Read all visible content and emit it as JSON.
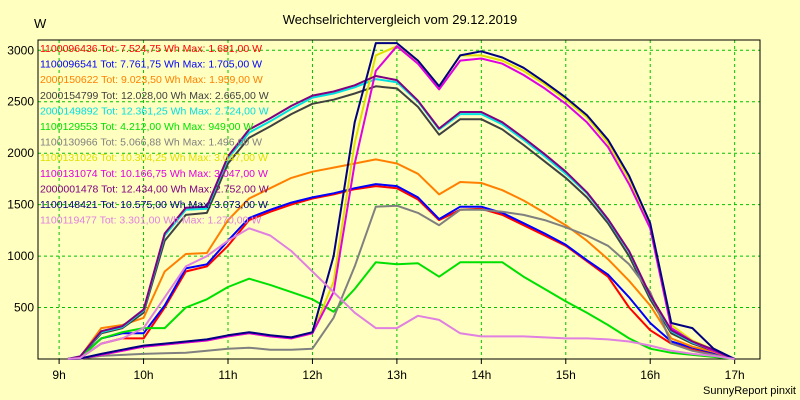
{
  "chart_data": {
    "type": "line",
    "title": "Wechselrichtervergleich vom 29.12.2019",
    "ylabel": "W",
    "xlabel": "",
    "footer": "SunnyReport pinxit",
    "xlim": [
      8.75,
      17.3
    ],
    "ylim": [
      0,
      3100
    ],
    "x_ticks": [
      9,
      10,
      11,
      12,
      13,
      14,
      15,
      16,
      17
    ],
    "x_tick_labels": [
      "9h",
      "10h",
      "11h",
      "12h",
      "13h",
      "14h",
      "15h",
      "16h",
      "17h"
    ],
    "y_ticks": [
      500,
      1000,
      1500,
      2000,
      2500,
      3000
    ],
    "y_tick_labels": [
      "500",
      "1000",
      "1500",
      "2000",
      "2500",
      "3000"
    ],
    "grid": true,
    "legend_position": "top-left",
    "x": [
      9.1,
      9.25,
      9.5,
      9.75,
      10.0,
      10.25,
      10.5,
      10.75,
      11.0,
      11.25,
      11.5,
      11.75,
      12.0,
      12.25,
      12.5,
      12.75,
      13.0,
      13.25,
      13.5,
      13.75,
      14.0,
      14.25,
      14.5,
      14.75,
      15.0,
      15.25,
      15.5,
      15.75,
      16.0,
      16.25,
      16.5,
      16.75,
      17.0
    ],
    "series": [
      {
        "name": "1100096436 Tot: 7.524,75 Wh Max: 1.681,00 W",
        "color": "#ff0000",
        "values": [
          0,
          10,
          150,
          200,
          200,
          500,
          850,
          900,
          1100,
          1350,
          1430,
          1500,
          1560,
          1600,
          1650,
          1680,
          1660,
          1550,
          1350,
          1450,
          1460,
          1400,
          1300,
          1200,
          1100,
          950,
          800,
          500,
          280,
          150,
          90,
          50,
          0
        ]
      },
      {
        "name": "1100096541 Tot: 7.761,75 Wh Max: 1.705,00 W",
        "color": "#0000ff",
        "values": [
          0,
          15,
          200,
          250,
          250,
          520,
          880,
          920,
          1150,
          1370,
          1450,
          1520,
          1570,
          1610,
          1660,
          1700,
          1680,
          1570,
          1360,
          1480,
          1480,
          1420,
          1320,
          1220,
          1110,
          960,
          820,
          600,
          350,
          170,
          110,
          60,
          0
        ]
      },
      {
        "name": "2000150622 Tot: 9.023,50 Wh Max: 1.959,00 W",
        "color": "#ff8000",
        "values": [
          0,
          20,
          300,
          330,
          400,
          850,
          1020,
          1030,
          1350,
          1560,
          1660,
          1760,
          1820,
          1860,
          1900,
          1940,
          1900,
          1800,
          1600,
          1720,
          1710,
          1640,
          1540,
          1420,
          1300,
          1150,
          970,
          760,
          520,
          200,
          120,
          70,
          0
        ]
      },
      {
        "name": "2000154799 Tot: 12.028,00 Wh Max: 2.665,00 W",
        "color": "#404040",
        "values": [
          0,
          20,
          250,
          300,
          450,
          1150,
          1400,
          1420,
          1900,
          2150,
          2260,
          2380,
          2480,
          2520,
          2580,
          2650,
          2630,
          2450,
          2180,
          2330,
          2330,
          2230,
          2080,
          1920,
          1760,
          1570,
          1320,
          1000,
          580,
          250,
          150,
          80,
          0
        ]
      },
      {
        "name": "2000149892 Tot: 12.361,25 Wh Max: 2.724,00 W",
        "color": "#00e0e0",
        "values": [
          0,
          25,
          260,
          310,
          470,
          1200,
          1450,
          1460,
          1950,
          2200,
          2310,
          2430,
          2540,
          2580,
          2640,
          2720,
          2690,
          2500,
          2230,
          2380,
          2380,
          2280,
          2130,
          1970,
          1800,
          1610,
          1350,
          1040,
          610,
          270,
          160,
          90,
          0
        ]
      },
      {
        "name": "1100129553 Tot: 4.212,00 Wh Max: 949,00 W",
        "color": "#00e000",
        "values": [
          0,
          10,
          200,
          260,
          300,
          300,
          500,
          580,
          700,
          780,
          720,
          650,
          580,
          460,
          680,
          940,
          920,
          930,
          800,
          940,
          940,
          940,
          800,
          680,
          560,
          450,
          330,
          200,
          100,
          60,
          40,
          20,
          0
        ]
      },
      {
        "name": "1100130966 Tot: 5.066,88 Wh Max: 1.496,00 W",
        "color": "#808080",
        "values": [
          0,
          5,
          30,
          40,
          50,
          55,
          60,
          80,
          100,
          110,
          90,
          90,
          100,
          400,
          900,
          1480,
          1490,
          1420,
          1300,
          1450,
          1450,
          1430,
          1400,
          1350,
          1280,
          1200,
          1100,
          920,
          650,
          150,
          80,
          40,
          0
        ]
      },
      {
        "name": "1100131026 Tot: 10.304,25 Wh Max: 3.047,00 W",
        "color": "#e0e000",
        "values": [
          0,
          5,
          40,
          80,
          120,
          140,
          160,
          180,
          220,
          250,
          220,
          200,
          250,
          750,
          2100,
          2950,
          3040,
          2900,
          2650,
          2950,
          2950,
          2900,
          2800,
          2670,
          2520,
          2350,
          2100,
          1750,
          1300,
          330,
          180,
          90,
          0
        ]
      },
      {
        "name": "1100131074 Tot: 10.166,75 Wh Max: 3.047,00 W",
        "color": "#e000e0",
        "values": [
          0,
          5,
          40,
          80,
          120,
          140,
          160,
          180,
          220,
          250,
          220,
          200,
          250,
          650,
          1900,
          2800,
          3040,
          2870,
          2620,
          2900,
          2920,
          2870,
          2760,
          2630,
          2480,
          2300,
          2060,
          1700,
          1270,
          300,
          170,
          80,
          0
        ]
      },
      {
        "name": "2000001478 Tot: 12.434,00 Wh Max: 2.752,00 W",
        "color": "#800080",
        "values": [
          0,
          25,
          270,
          320,
          480,
          1220,
          1470,
          1480,
          1970,
          2230,
          2340,
          2460,
          2560,
          2600,
          2660,
          2750,
          2710,
          2510,
          2240,
          2400,
          2400,
          2300,
          2150,
          1990,
          1820,
          1620,
          1360,
          1050,
          620,
          280,
          170,
          90,
          0
        ]
      },
      {
        "name": "1100148421 Tot: 10.575,00 Wh Max: 3.073,00 W",
        "color": "#000080",
        "values": [
          0,
          5,
          50,
          90,
          130,
          150,
          170,
          190,
          230,
          260,
          230,
          210,
          260,
          1000,
          2300,
          3070,
          3070,
          2900,
          2650,
          2950,
          2990,
          2930,
          2830,
          2690,
          2540,
          2370,
          2130,
          1780,
          1320,
          350,
          300,
          100,
          0
        ]
      },
      {
        "name": "1100119477 Tot: 3.301,00 Wh Max: 1.270,00 W",
        "color": "#e080e0",
        "values": [
          0,
          10,
          150,
          200,
          300,
          600,
          900,
          1000,
          1150,
          1270,
          1200,
          1050,
          850,
          650,
          450,
          300,
          300,
          420,
          380,
          250,
          220,
          220,
          220,
          210,
          200,
          200,
          190,
          170,
          130,
          80,
          50,
          30,
          0
        ]
      }
    ]
  }
}
